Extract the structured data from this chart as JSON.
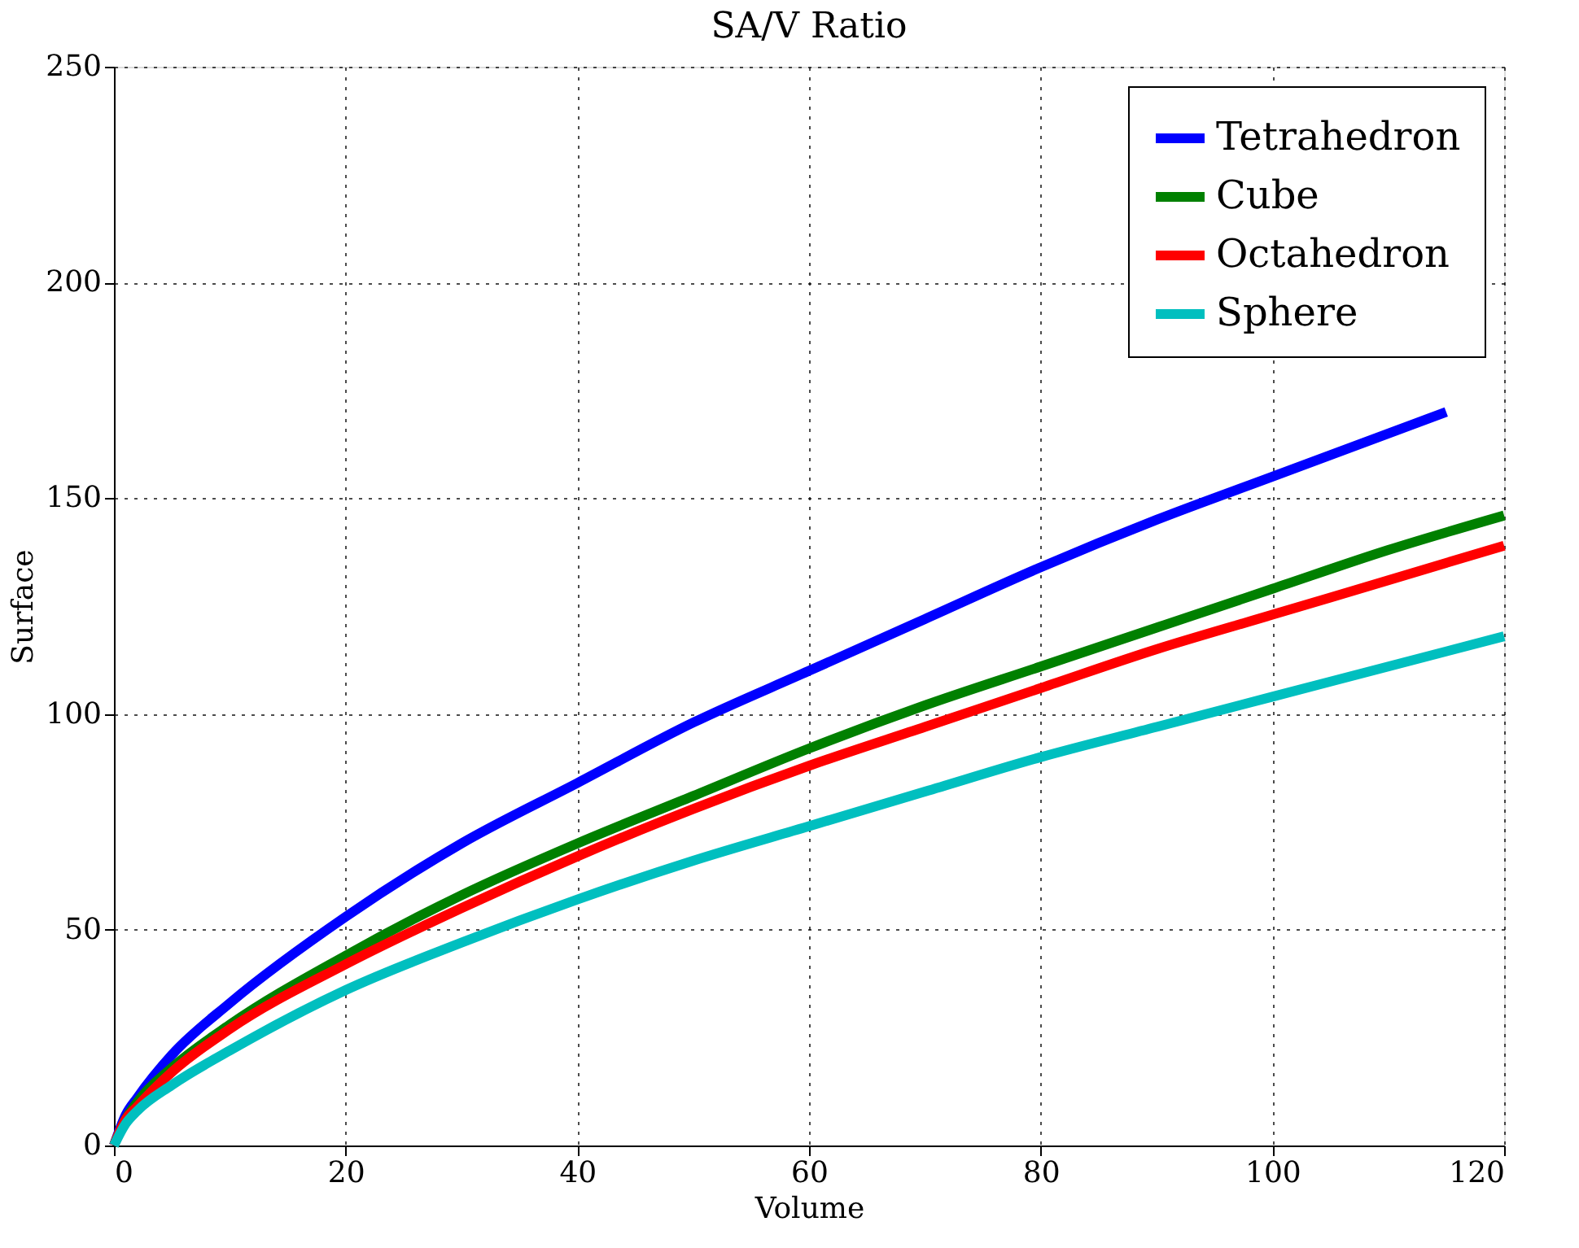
{
  "chart_data": {
    "type": "line",
    "title": "SA/V Ratio",
    "xlabel": "Volume",
    "ylabel": "Surface",
    "xlim": [
      0,
      120
    ],
    "ylim": [
      0,
      250
    ],
    "xticks": [
      0,
      20,
      40,
      60,
      80,
      100,
      120
    ],
    "yticks": [
      0,
      50,
      100,
      150,
      200,
      250
    ],
    "grid": true,
    "legend": "top right",
    "line_style": "solid",
    "series": [
      {
        "name": "Tetrahedron",
        "color": "#0000ff",
        "x": [
          0,
          1,
          2,
          5,
          10,
          20,
          30,
          40,
          50,
          60,
          70,
          80,
          90,
          100,
          110,
          115
        ],
        "values": [
          0,
          7,
          11,
          21,
          33,
          53,
          70,
          84,
          98,
          110,
          122,
          134,
          145,
          155,
          165,
          170
        ]
      },
      {
        "name": "Cube",
        "color": "#008000",
        "x": [
          0,
          1,
          2,
          5,
          10,
          20,
          30,
          40,
          50,
          60,
          70,
          80,
          90,
          100,
          110,
          120
        ],
        "values": [
          0,
          6,
          10,
          18,
          28,
          44,
          58,
          70,
          81,
          92,
          102,
          111,
          120,
          129,
          138,
          146
        ]
      },
      {
        "name": "Octahedron",
        "color": "#ff0000",
        "x": [
          0,
          1,
          2,
          5,
          10,
          20,
          30,
          40,
          50,
          60,
          70,
          80,
          90,
          100,
          110,
          120
        ],
        "values": [
          0,
          6,
          9,
          17,
          27,
          42,
          55,
          67,
          78,
          88,
          97,
          106,
          115,
          123,
          131,
          139
        ]
      },
      {
        "name": "Sphere",
        "color": "#00bfbf",
        "x": [
          0,
          1,
          2,
          5,
          10,
          20,
          30,
          40,
          50,
          60,
          70,
          80,
          90,
          100,
          110,
          120
        ],
        "values": [
          0,
          5,
          8,
          14,
          22,
          36,
          47,
          57,
          66,
          74,
          82,
          90,
          97,
          104,
          111,
          118
        ]
      }
    ]
  }
}
